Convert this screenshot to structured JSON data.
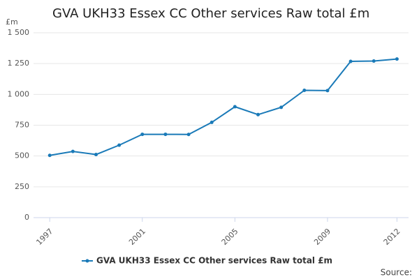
{
  "chart_data": {
    "type": "line",
    "title": "GVA UKH33 Essex CC Other services Raw total £m",
    "y_label": "£m",
    "x": [
      1997,
      1998,
      1999,
      2000,
      2001,
      2002,
      2003,
      2004,
      2005,
      2006,
      2007,
      2008,
      2009,
      2010,
      2011,
      2012
    ],
    "series": [
      {
        "name": "GVA UKH33 Essex CC Other services Raw total £m",
        "color": "#1a7ab8",
        "values": [
          505,
          537,
          512,
          588,
          676,
          676,
          675,
          773,
          900,
          836,
          895,
          1033,
          1031,
          1268,
          1271,
          1287
        ]
      }
    ],
    "xlim": [
      1996.3,
      2012.5
    ],
    "xticks": [
      1997,
      2001,
      2005,
      2009,
      2012
    ],
    "ylim": [
      0,
      1500
    ],
    "yticks": [
      0,
      250,
      500,
      750,
      {
        "value": 1000,
        "label": "1 000"
      },
      {
        "value": 1250,
        "label": "1 250"
      },
      {
        "value": 1500,
        "label": "1 500"
      }
    ],
    "grid": true,
    "legend": "bottom",
    "source": "Source:"
  }
}
